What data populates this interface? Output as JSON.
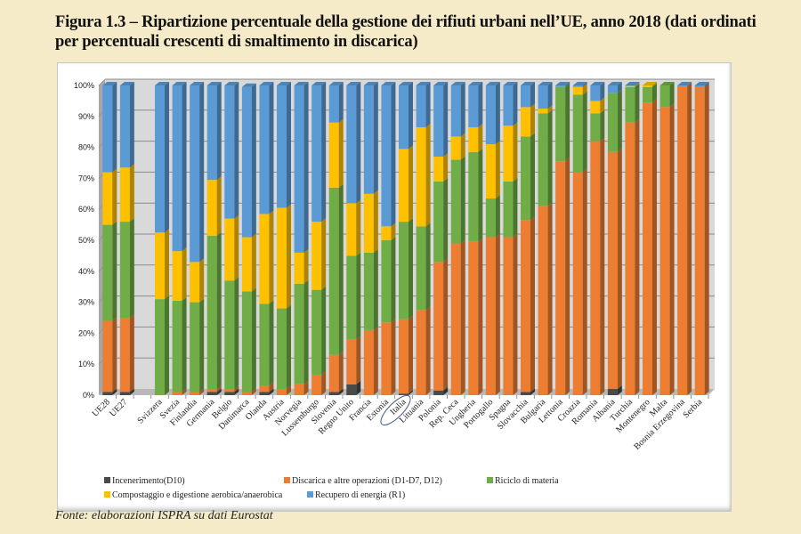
{
  "title": "Figura 1.3 – Ripartizione percentuale della gestione dei rifiuti urbani nell’UE, anno 2018 (dati ordinati per percentuali crescenti di smaltimento in discarica)",
  "source": "Fonte: elaborazioni ISPRA su dati Eurostat",
  "colors": {
    "incenerimento": "#4a4a4a",
    "discarica": "#ed7d31",
    "riciclo": "#70ad47",
    "compostaggio": "#ffc000",
    "recupero": "#5b9bd5",
    "background": "#f5ebc8",
    "plot_wall": "#d9d9d9"
  },
  "legend": [
    {
      "key": "incenerimento",
      "label": "Incenerimento(D10)"
    },
    {
      "key": "discarica",
      "label": "Discarica e altre operazioni (D1-D7, D12)"
    },
    {
      "key": "riciclo",
      "label": "Riciclo di materia"
    },
    {
      "key": "compostaggio",
      "label": "Compostaggio e digestione aerobica/anaerobica"
    },
    {
      "key": "recupero",
      "label": "Recupero di energia (R1)"
    }
  ],
  "chart_data": {
    "type": "bar",
    "stacked": true,
    "percent": true,
    "title": "Ripartizione percentuale della gestione dei rifiuti urbani nell’UE, anno 2018",
    "xlabel": "",
    "ylabel": "",
    "ylim": [
      0,
      100
    ],
    "yticks": [
      "0%",
      "10%",
      "20%",
      "30%",
      "40%",
      "50%",
      "60%",
      "70%",
      "80%",
      "90%",
      "100%"
    ],
    "grid": true,
    "legend_position": "bottom",
    "highlighted_category": "Italia",
    "categories": [
      "UE28",
      "UE27",
      "",
      "Svizzera",
      "Svezia",
      "Finlandia",
      "Germania",
      "Belgio",
      "Danimarca",
      "Olanda",
      "Austria",
      "Norvegia",
      "Lussemburgo",
      "Slovenia",
      "Regno Unito",
      "Francia",
      "Estonia",
      "Italia",
      "Lituania",
      "Polonia",
      "Rep. Ceca",
      "Ungheria",
      "Portogallo",
      "Spagna",
      "Slovacchia",
      "Bulgaria",
      "Lettonia",
      "Croazia",
      "Romania",
      "Albania",
      "Turchia",
      "Montenegro",
      "Malta",
      "Bosnia Erzegovina",
      "Serbia"
    ],
    "series": [
      {
        "key": "incenerimento",
        "name": "Incenerimento(D10)",
        "values": [
          1,
          1,
          null,
          0,
          0,
          0,
          1,
          1,
          0,
          1,
          0,
          0,
          0,
          1,
          3.5,
          0,
          0,
          0.5,
          0,
          1.5,
          0,
          0,
          0,
          0,
          1,
          0,
          0,
          0,
          0,
          2,
          0,
          0,
          0,
          0,
          0
        ]
      },
      {
        "key": "discarica",
        "name": "Discarica e altre operazioni (D1-D7, D12)",
        "values": [
          23,
          24,
          null,
          0,
          1,
          1,
          1,
          1,
          1,
          2,
          2,
          3.5,
          6.5,
          12,
          14.5,
          21,
          23.5,
          24,
          27.5,
          41.5,
          49,
          49.5,
          51,
          51,
          55.5,
          61,
          75.5,
          72,
          82,
          76.5,
          88,
          94.5,
          93,
          99.8,
          99.5
        ]
      },
      {
        "key": "riciclo",
        "name": "Riciclo di materia",
        "values": [
          31,
          31,
          null,
          31,
          29.5,
          29,
          49.5,
          35,
          32.5,
          26.5,
          26,
          32.5,
          27.5,
          54,
          27,
          25,
          26.5,
          31.5,
          27,
          26,
          27,
          29,
          12.5,
          18,
          27,
          30,
          24,
          25,
          9,
          19,
          11.5,
          5,
          7,
          0,
          0
        ]
      },
      {
        "key": "compostaggio",
        "name": "Compostaggio e digestione aerobica/anaerobica",
        "values": [
          17,
          17.5,
          null,
          21.5,
          16,
          13,
          18,
          20,
          17.5,
          29,
          32.5,
          10,
          22,
          21,
          17,
          19,
          4.5,
          23.5,
          32,
          8,
          7.5,
          8,
          17.5,
          18,
          9.5,
          1.5,
          0,
          2.5,
          4,
          0,
          0.3,
          0.5,
          0,
          0,
          0
        ]
      },
      {
        "key": "recupero",
        "name": "Recupero di energia (R1)",
        "values": [
          28,
          26.5,
          null,
          47.5,
          53.5,
          57,
          30.5,
          43,
          48.5,
          41.5,
          39.5,
          54,
          44,
          12,
          38,
          35,
          45.5,
          20.5,
          13.5,
          23,
          16.5,
          13.5,
          19,
          13,
          7,
          7.5,
          0.5,
          0.5,
          5,
          2.5,
          0.2,
          0,
          0,
          0.2,
          0.5
        ]
      }
    ]
  }
}
